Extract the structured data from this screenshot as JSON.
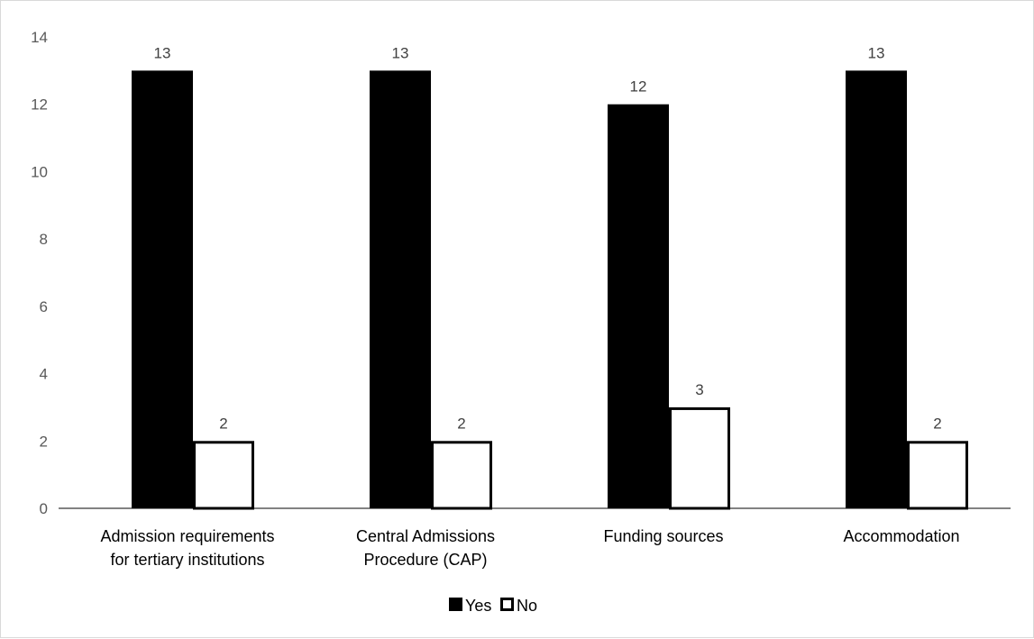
{
  "chart_data": {
    "type": "bar",
    "title": "",
    "xlabel": "",
    "ylabel": "",
    "ylim": [
      0,
      14
    ],
    "yticks": [
      0,
      2,
      4,
      6,
      8,
      10,
      12,
      14
    ],
    "grid": false,
    "legend_position": "bottom",
    "categories": [
      [
        "Admission requirements",
        "for tertiary institutions"
      ],
      [
        "Central Admissions",
        "Procedure (CAP)"
      ],
      [
        "Funding sources"
      ],
      [
        "Accommodation"
      ]
    ],
    "series": [
      {
        "name": "Yes",
        "values": [
          13,
          13,
          12,
          13
        ],
        "fill": "#000000",
        "stroke": "#000000"
      },
      {
        "name": "No",
        "values": [
          2,
          2,
          3,
          2
        ],
        "fill": "#ffffff",
        "stroke": "#000000"
      }
    ],
    "data_labels": true
  }
}
